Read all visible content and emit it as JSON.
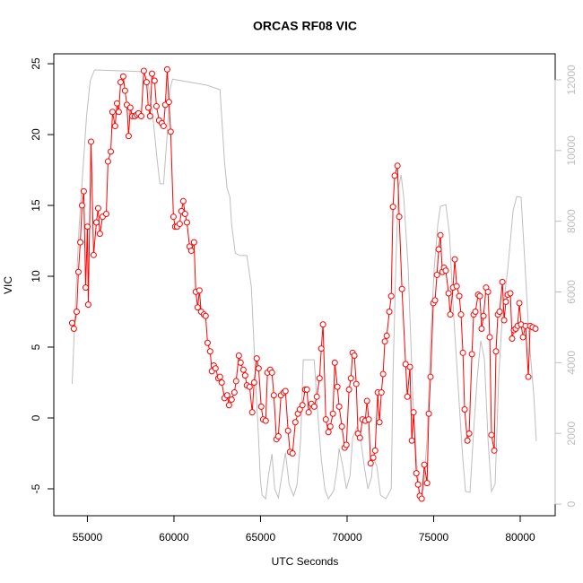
{
  "chart_data": {
    "type": "line",
    "title": "ORCAS RF08 VIC",
    "xlabel": "UTC Seconds",
    "ylabel": "VIC",
    "xlim": [
      53060,
      82020
    ],
    "xticks": [
      55000,
      60000,
      65000,
      70000,
      75000,
      80000
    ],
    "ylim": [
      -6.9,
      25.7
    ],
    "yticks": [
      -5,
      0,
      5,
      10,
      15,
      20,
      25
    ],
    "y2lim": [
      -330,
      12736
    ],
    "y2ticks": [
      0,
      2000,
      4000,
      6000,
      8000,
      10000,
      12000
    ],
    "y2color": "#bebebe",
    "series": [
      {
        "color": "#ff0000",
        "markers": true,
        "x": [
          54120,
          54220,
          54380,
          54480,
          54590,
          54690,
          54790,
          54900,
          55000,
          55050,
          55210,
          55360,
          55520,
          55620,
          55720,
          55880,
          56090,
          56190,
          56350,
          56450,
          56600,
          56710,
          56810,
          56920,
          57070,
          57170,
          57280,
          57380,
          57480,
          57590,
          57740,
          57850,
          57950,
          58110,
          58260,
          58420,
          58520,
          58620,
          58730,
          58880,
          58990,
          59140,
          59300,
          59400,
          59500,
          59610,
          59710,
          59810,
          59970,
          60070,
          60180,
          60330,
          60430,
          60540,
          60640,
          60750,
          60900,
          61000,
          61160,
          61260,
          61370,
          61470,
          61570,
          61730,
          61830,
          61940,
          62090,
          62190,
          62300,
          62400,
          62560,
          62660,
          62760,
          62920,
          63070,
          63180,
          63330,
          63490,
          63590,
          63750,
          63850,
          64010,
          64110,
          64210,
          64370,
          64520,
          64630,
          64780,
          64890,
          65040,
          65150,
          65300,
          65400,
          65560,
          65660,
          65770,
          65920,
          66030,
          66180,
          66340,
          66440,
          66590,
          66700,
          66850,
          67010,
          67160,
          67270,
          67420,
          67580,
          67680,
          67780,
          67940,
          68100,
          68250,
          68410,
          68510,
          68610,
          68770,
          68920,
          69030,
          69180,
          69290,
          69440,
          69540,
          69700,
          69860,
          69960,
          70110,
          70220,
          70320,
          70420,
          70530,
          70630,
          70740,
          70890,
          71050,
          71150,
          71250,
          71360,
          71510,
          71620,
          71770,
          71870,
          71980,
          72080,
          72180,
          72290,
          72440,
          72550,
          72650,
          72750,
          72910,
          73010,
          73170,
          73380,
          73480,
          73630,
          73740,
          73840,
          74000,
          74100,
          74200,
          74310,
          74460,
          74620,
          74720,
          74820,
          74980,
          75080,
          75190,
          75290,
          75390,
          75500,
          75600,
          75700,
          75860,
          75960,
          76120,
          76220,
          76330,
          76480,
          76580,
          76690,
          76790,
          76950,
          77050,
          77210,
          77310,
          77410,
          77570,
          77670,
          77770,
          77880,
          78030,
          78140,
          78240,
          78340,
          78500,
          78600,
          78710,
          78810,
          78970,
          79070,
          79170,
          79280,
          79430,
          79530,
          79640,
          79740,
          79850,
          79950,
          80050,
          80160,
          80310,
          80470,
          80570,
          80720,
          80880
        ],
        "values": [
          6.7,
          6.3,
          7.5,
          10.3,
          12.4,
          15.0,
          16.0,
          9.2,
          13.5,
          8.0,
          19.5,
          11.5,
          13.8,
          14.8,
          13.0,
          14.2,
          14.4,
          18.1,
          18.8,
          21.6,
          20.6,
          22.2,
          21.6,
          23.7,
          24.1,
          23.1,
          22.1,
          19.9,
          21.9,
          21.3,
          21.3,
          21.4,
          21.5,
          21.3,
          24.5,
          23.7,
          21.9,
          21.3,
          24.3,
          23.8,
          22.0,
          21.0,
          20.8,
          20.6,
          22.1,
          24.6,
          22.3,
          20.2,
          14.2,
          13.5,
          13.5,
          13.7,
          14.6,
          15.3,
          14.4,
          13.8,
          12.1,
          11.8,
          12.4,
          8.9,
          7.8,
          9.0,
          7.5,
          7.3,
          7.2,
          5.3,
          4.7,
          3.3,
          3.7,
          3.5,
          2.8,
          2.9,
          2.5,
          1.4,
          1.6,
          0.9,
          1.3,
          1.8,
          2.6,
          4.4,
          3.9,
          3.4,
          3.0,
          2.3,
          2.2,
          0.4,
          2.5,
          4.2,
          3.5,
          0.8,
          -0.1,
          -0.2,
          3.2,
          3.4,
          3.2,
          1.6,
          -1.5,
          -1.3,
          1.6,
          1.8,
          1.9,
          -0.9,
          -2.4,
          -2.5,
          -0.3,
          0.3,
          0.6,
          0.9,
          2.0,
          2.0,
          0.4,
          1.0,
          0.8,
          1.5,
          2.8,
          4.9,
          6.6,
          -0.1,
          -1.0,
          -0.6,
          0.3,
          3.9,
          2.2,
          0.8,
          -0.6,
          -2.1,
          -1.9,
          2.0,
          2.8,
          4.6,
          4.4,
          2.4,
          -1.1,
          -1.4,
          -0.1,
          -0.2,
          1.2,
          -0.1,
          -3.2,
          -2.8,
          -2.3,
          1.8,
          -0.3,
          1.8,
          3.1,
          5.4,
          5.8,
          7.5,
          8.6,
          14.9,
          17.1,
          17.8,
          14.2,
          9.1,
          3.8,
          1.5,
          3.6,
          -1.6,
          0.4,
          -3.9,
          -4.7,
          -5.5,
          -5.7,
          -3.3,
          -4.6,
          0.3,
          2.9,
          8.1,
          8.3,
          10.1,
          11.9,
          12.9,
          10.3,
          10.6,
          10.4,
          8.8,
          7.3,
          9.2,
          11.2,
          9.3,
          8.6,
          7.3,
          4.6,
          0.6,
          -1.6,
          -1.1,
          4.5,
          7.3,
          7.5,
          8.7,
          8.6,
          6.3,
          7.2,
          9.2,
          8.9,
          5.7,
          -1.2,
          -2.3,
          4.7,
          7.3,
          7.5,
          9.6,
          6.9,
          8.2,
          8.7,
          8.8,
          5.6,
          6.2,
          6.3,
          6.5,
          8.1,
          6.6,
          5.7,
          6.5,
          2.9,
          6.5,
          6.4,
          6.3
        ]
      },
      {
        "color": "#bebebe",
        "axis": "y2",
        "x": [
          54120,
          54330,
          54530,
          54740,
          54950,
          55160,
          55410,
          57220,
          58260,
          58520,
          58780,
          59040,
          59190,
          59400,
          59610,
          59760,
          59920,
          61880,
          62660,
          62920,
          63070,
          63230,
          63330,
          63540,
          63800,
          64210,
          64470,
          64730,
          64890,
          64990,
          65090,
          65300,
          65460,
          65660,
          65820,
          66030,
          66230,
          66440,
          66650,
          66910,
          67110,
          67320,
          67470,
          68100,
          68300,
          68510,
          68720,
          68920,
          69230,
          69440,
          69540,
          69750,
          69960,
          70170,
          70320,
          70580,
          70790,
          70990,
          71200,
          71410,
          71510,
          71720,
          71930,
          72240,
          72550,
          72650,
          72810,
          72960,
          73120,
          73270,
          73530,
          73790,
          74000,
          74200,
          74410,
          74620,
          74820,
          75030,
          75240,
          75390,
          75700,
          75910,
          76120,
          76380,
          76640,
          76840,
          77100,
          77310,
          77520,
          77720,
          77930,
          78140,
          78340,
          78550,
          78760,
          78970,
          79280,
          79590,
          79800,
          80050,
          80260,
          80520,
          80780,
          80930
        ],
        "values": [
          3400,
          5890,
          7910,
          9440,
          10960,
          11970,
          12280,
          12250,
          12230,
          11850,
          10960,
          9690,
          9060,
          9060,
          10450,
          11720,
          12020,
          11850,
          11720,
          9690,
          8930,
          8680,
          7910,
          7100,
          7030,
          7030,
          6140,
          3350,
          1830,
          690,
          250,
          150,
          810,
          1420,
          430,
          180,
          810,
          1450,
          560,
          230,
          560,
          1830,
          4080,
          4080,
          2590,
          1270,
          410,
          150,
          380,
          1070,
          1570,
          1070,
          430,
          810,
          1880,
          2180,
          1830,
          1070,
          430,
          760,
          1320,
          1070,
          250,
          150,
          430,
          3600,
          6650,
          8930,
          9310,
          8680,
          6650,
          3100,
          1320,
          180,
          430,
          1830,
          4620,
          6650,
          7910,
          8420,
          8470,
          7660,
          5630,
          3600,
          1570,
          360,
          330,
          2080,
          3600,
          4620,
          4110,
          1830,
          360,
          560,
          3600,
          5380,
          6650,
          8300,
          8700,
          8680,
          6900,
          4620,
          3100,
          1780
        ]
      }
    ]
  }
}
